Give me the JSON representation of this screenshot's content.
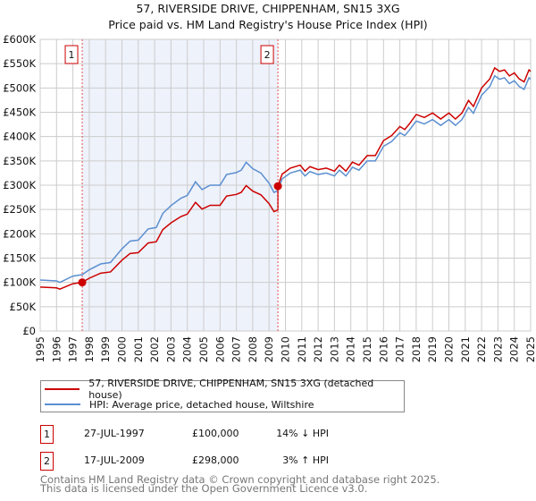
{
  "chart_data": {
    "type": "line",
    "title": "57, RIVERSIDE DRIVE, CHIPPENHAM, SN15 3XG",
    "subtitle": "Price paid vs. HM Land Registry's House Price Index (HPI)",
    "xlim": [
      1995,
      2025
    ],
    "ylim": [
      0,
      600000
    ],
    "grid": true,
    "y_ticks": [
      0,
      50000,
      100000,
      150000,
      200000,
      250000,
      300000,
      350000,
      400000,
      450000,
      500000,
      550000,
      600000
    ],
    "y_tick_labels": [
      "£0",
      "£50K",
      "£100K",
      "£150K",
      "£200K",
      "£250K",
      "£300K",
      "£350K",
      "£400K",
      "£450K",
      "£500K",
      "£550K",
      "£600K"
    ],
    "x_tick_labels": [
      "1995",
      "1996",
      "1997",
      "1998",
      "1999",
      "2000",
      "2001",
      "2002",
      "2003",
      "2004",
      "2005",
      "2006",
      "2007",
      "2008",
      "2009",
      "2010",
      "2011",
      "2012",
      "2013",
      "2014",
      "2015",
      "2016",
      "2017",
      "2018",
      "2019",
      "2020",
      "2021",
      "2022",
      "2023",
      "2024",
      "2025"
    ],
    "colors": {
      "property": "#cc0000",
      "hpi": "#5b8fd0",
      "shade": "#eef2fb",
      "marker_line": "#e05050"
    },
    "hpi_series": {
      "name": "HPI: Average price, detached house, Wiltshire",
      "x": [
        1995,
        1996,
        1996.2,
        1997,
        1997.57,
        1998,
        1998.7,
        1999.3,
        2000,
        2000.5,
        2001,
        2001.6,
        2002.1,
        2002.5,
        2003,
        2003.6,
        2004,
        2004.5,
        2004.9,
        2005.4,
        2006,
        2006.4,
        2007,
        2007.3,
        2007.6,
        2008,
        2008.5,
        2009,
        2009.3,
        2009.54,
        2009.8,
        2010.3,
        2010.9,
        2011.2,
        2011.5,
        2012,
        2012.5,
        2013,
        2013.3,
        2013.7,
        2014.1,
        2014.5,
        2015,
        2015.5,
        2016,
        2016.5,
        2017,
        2017.3,
        2017.6,
        2018,
        2018.5,
        2019,
        2019.5,
        2020,
        2020.4,
        2020.8,
        2021.2,
        2021.5,
        2022,
        2022.5,
        2022.8,
        2023.1,
        2023.4,
        2023.7,
        2024,
        2024.3,
        2024.6,
        2024.9,
        2025
      ],
      "y": [
        105000,
        103000,
        100000,
        113000,
        116000,
        126000,
        138000,
        141000,
        169000,
        185000,
        187000,
        210000,
        213000,
        242000,
        258000,
        273000,
        279000,
        307000,
        291000,
        300000,
        300000,
        322000,
        326000,
        331000,
        347000,
        334000,
        325000,
        304000,
        285000,
        289000,
        313000,
        325000,
        331000,
        319000,
        328000,
        322000,
        325000,
        319000,
        331000,
        319000,
        337000,
        331000,
        350000,
        350000,
        380000,
        390000,
        408000,
        402000,
        414000,
        432000,
        426000,
        435000,
        423000,
        435000,
        423000,
        435000,
        460000,
        448000,
        485000,
        503000,
        525000,
        518000,
        521000,
        509000,
        515000,
        503000,
        497000,
        521000,
        518000
      ]
    },
    "property_series": {
      "name": "57, RIVERSIDE DRIVE, CHIPPENHAM, SN15 3XG (detached house)"
    },
    "sales": [
      {
        "id": "1",
        "x": 1997.57,
        "date": "27-JUL-1997",
        "price": 100000,
        "price_label": "£100,000",
        "hpi_label": "14% ↓ HPI"
      },
      {
        "id": "2",
        "x": 2009.54,
        "date": "17-JUL-2009",
        "price": 298000,
        "price_label": "£298,000",
        "hpi_label": "3% ↑ HPI"
      }
    ]
  },
  "footer": {
    "line1": "Contains HM Land Registry data © Crown copyright and database right 2025.",
    "line2": "This data is licensed under the Open Government Licence v3.0."
  }
}
